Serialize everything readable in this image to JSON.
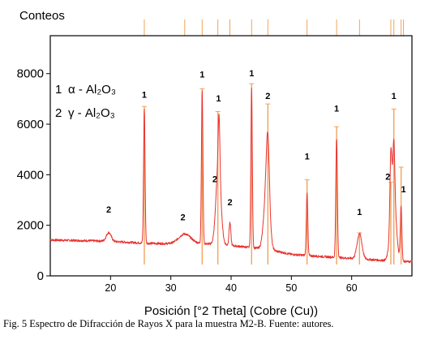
{
  "chart_data": {
    "type": "line",
    "ylabel": "Conteos",
    "xlabel": "Posición [°2 Theta] (Cobre (Cu))",
    "xlim": [
      10,
      70
    ],
    "ylim": [
      0,
      9500
    ],
    "x_ticks": [
      "20",
      "30",
      "40",
      "50",
      "60"
    ],
    "y_ticks": [
      "0",
      "2000",
      "4000",
      "6000",
      "8000"
    ],
    "grid": false,
    "legend": {
      "placement": "top-left",
      "entries": [
        {
          "number": "1",
          "label": "α - Al₂O₃"
        },
        {
          "number": "2",
          "label": "γ - Al₂O₃"
        }
      ]
    },
    "series": [
      {
        "color": "#e8332f",
        "baseline": [
          [
            10,
            1420
          ],
          [
            14,
            1400
          ],
          [
            18,
            1380
          ],
          [
            22,
            1340
          ],
          [
            26,
            1290
          ],
          [
            30,
            1270
          ],
          [
            34,
            1280
          ],
          [
            38,
            1250
          ],
          [
            42,
            1150
          ],
          [
            46,
            1050
          ],
          [
            50,
            850
          ],
          [
            54,
            780
          ],
          [
            58,
            720
          ],
          [
            62,
            660
          ],
          [
            66,
            600
          ],
          [
            70,
            560
          ]
        ],
        "peaks": [
          {
            "x": 19.7,
            "height": 350,
            "w": 0.4
          },
          {
            "x": 25.6,
            "height": 5300,
            "w": 0.12
          },
          {
            "x": 32.3,
            "height": 380,
            "w": 1.0
          },
          {
            "x": 35.2,
            "height": 6050,
            "w": 0.12
          },
          {
            "x": 37.9,
            "height": 3200,
            "w": 0.4
          },
          {
            "x": 38.0,
            "height": 2050,
            "w": 0.13
          },
          {
            "x": 39.8,
            "height": 900,
            "w": 0.15
          },
          {
            "x": 43.4,
            "height": 6300,
            "w": 0.12
          },
          {
            "x": 45.9,
            "height": 2350,
            "w": 0.45
          },
          {
            "x": 46.1,
            "height": 2450,
            "w": 0.25
          },
          {
            "x": 52.6,
            "height": 2500,
            "w": 0.12
          },
          {
            "x": 57.5,
            "height": 4700,
            "w": 0.13
          },
          {
            "x": 61.3,
            "height": 1000,
            "w": 0.4
          },
          {
            "x": 66.5,
            "height": 2500,
            "w": 0.15
          },
          {
            "x": 66.9,
            "height": 2800,
            "w": 0.45
          },
          {
            "x": 67.0,
            "height": 2100,
            "w": 0.15
          },
          {
            "x": 68.2,
            "height": 2100,
            "w": 0.13
          }
        ]
      }
    ],
    "reference_sticks_color": "#f2a35c",
    "reference_sticks": [
      {
        "x": 25.6,
        "y": 6700
      },
      {
        "x": 35.2,
        "y": 7400
      },
      {
        "x": 37.8,
        "y": 6500
      },
      {
        "x": 43.4,
        "y": 7600
      },
      {
        "x": 46.1,
        "y": 6800
      },
      {
        "x": 52.6,
        "y": 3800
      },
      {
        "x": 57.5,
        "y": 5900
      },
      {
        "x": 61.3,
        "y": 1700
      },
      {
        "x": 66.5,
        "y": 3700
      },
      {
        "x": 67.0,
        "y": 6600
      },
      {
        "x": 68.2,
        "y": 4300
      }
    ],
    "top_markers": [
      25.6,
      32.3,
      35.2,
      37.8,
      39.8,
      43.4,
      46.1,
      52.6,
      57.5,
      61.3,
      66.5,
      67.0,
      68.2,
      68.6
    ],
    "peak_labels": [
      {
        "text": "2",
        "x": 19.7,
        "y": 2500
      },
      {
        "text": "1",
        "x": 25.6,
        "y": 7050
      },
      {
        "text": "2",
        "x": 32.0,
        "y": 2200
      },
      {
        "text": "1",
        "x": 35.2,
        "y": 7850
      },
      {
        "text": "1",
        "x": 37.9,
        "y": 6900
      },
      {
        "text": "2",
        "x": 37.3,
        "y": 3700
      },
      {
        "text": "2",
        "x": 39.8,
        "y": 2800
      },
      {
        "text": "1",
        "x": 43.4,
        "y": 7900
      },
      {
        "text": "2",
        "x": 46.1,
        "y": 7000
      },
      {
        "text": "1",
        "x": 52.6,
        "y": 4600
      },
      {
        "text": "1",
        "x": 57.5,
        "y": 6500
      },
      {
        "text": "1",
        "x": 61.3,
        "y": 2400
      },
      {
        "text": "1",
        "x": 67.0,
        "y": 7000
      },
      {
        "text": "2",
        "x": 66.0,
        "y": 3800
      },
      {
        "text": "1",
        "x": 68.6,
        "y": 3300
      }
    ]
  },
  "caption": "Fig. 5 Espectro de Difracción de Rayos X para la muestra M2-B. Fuente: autores."
}
